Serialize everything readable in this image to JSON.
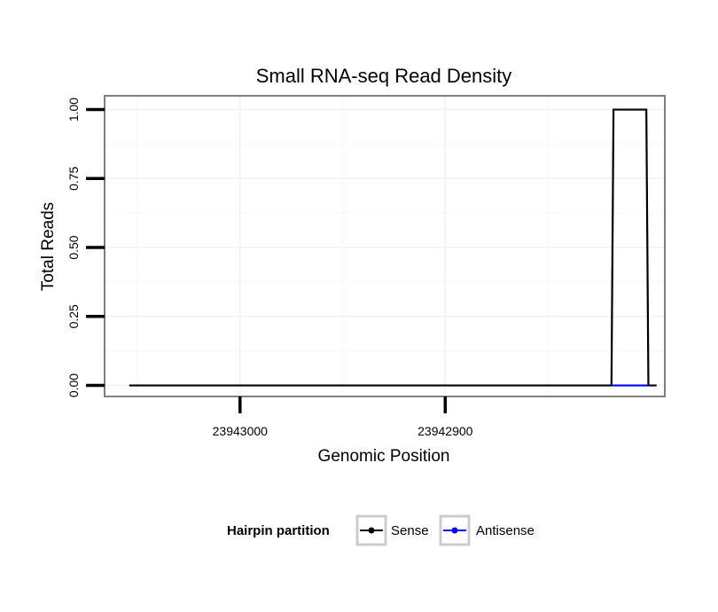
{
  "chart_data": {
    "type": "line",
    "title": "Small RNA-seq Read Density",
    "xlabel": "Genomic Position",
    "ylabel": "Total Reads",
    "x_reversed": true,
    "xlim": [
      23943066,
      23942793
    ],
    "ylim": [
      -0.04,
      1.05
    ],
    "x_ticks": [
      23943000,
      23942900
    ],
    "x_tick_labels": [
      "23943000",
      "23942900"
    ],
    "y_ticks": [
      0,
      0.25,
      0.5,
      0.75,
      1
    ],
    "y_tick_labels": [
      "0.00",
      "0.25",
      "0.50",
      "0.75",
      "1.00"
    ],
    "grid": true,
    "legend_position": "bottom",
    "legend_title": "Hairpin partition",
    "series": [
      {
        "name": "Sense",
        "color": "#000000",
        "x": [
          23943054,
          23942819,
          23942818,
          23942802,
          23942801,
          23942797
        ],
        "y": [
          0,
          0,
          1,
          1,
          0,
          0
        ]
      },
      {
        "name": "Antisense",
        "color": "#0000ff",
        "x": [
          23942819,
          23942801
        ],
        "y": [
          0,
          0
        ]
      }
    ]
  }
}
